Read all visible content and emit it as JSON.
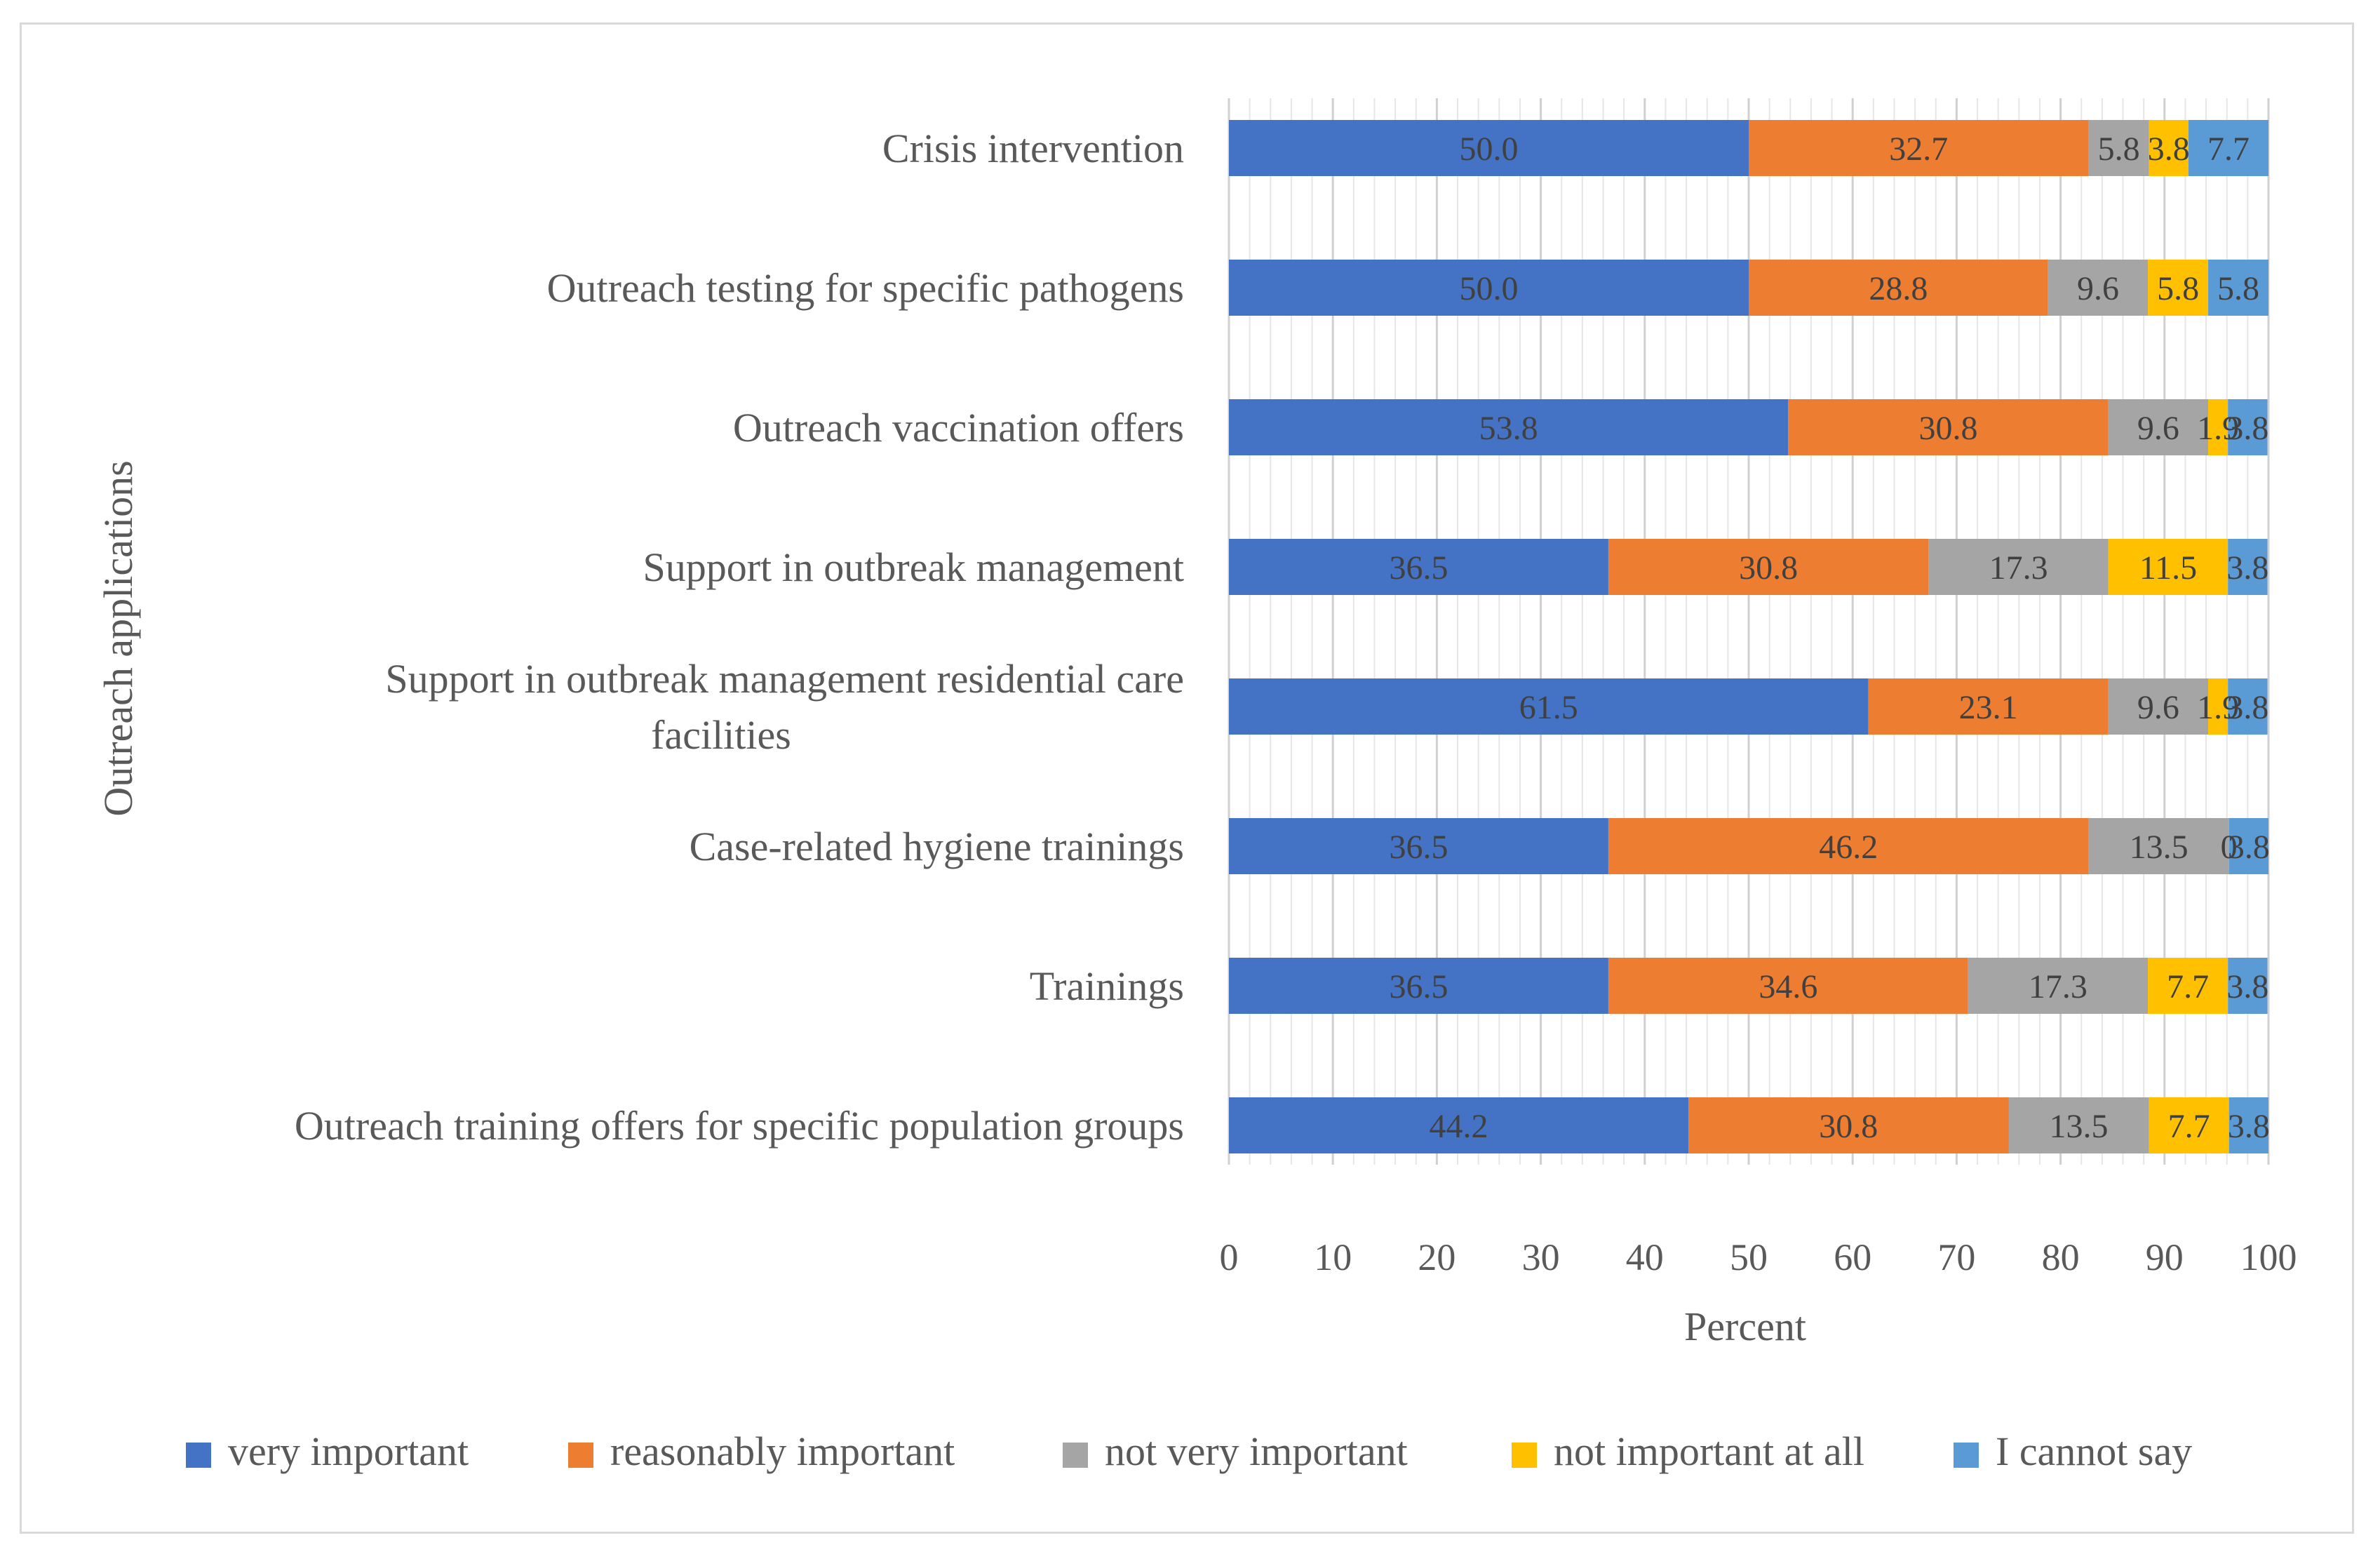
{
  "chart_data": {
    "type": "bar",
    "orientation": "horizontal",
    "stacked": true,
    "categories": [
      "Crisis intervention",
      "Outreach testing for specific pathogens",
      "Outreach vaccination offers",
      "Support in outbreak management",
      "Support in outbreak management residential care facilities",
      "Case-related hygiene trainings",
      "Trainings",
      "Outreach training offers for specific population groups"
    ],
    "category_label_lines": [
      [
        "Crisis intervention"
      ],
      [
        "Outreach testing for specific pathogens"
      ],
      [
        "Outreach vaccination offers"
      ],
      [
        "Support in outbreak management"
      ],
      [
        "Support in outbreak management residential care",
        "facilities"
      ],
      [
        "Case-related hygiene trainings"
      ],
      [
        "Trainings"
      ],
      [
        "Outreach training offers for specific population groups"
      ]
    ],
    "series": [
      {
        "name": "very important",
        "color": "#4472c4",
        "values": [
          50.0,
          50.0,
          53.8,
          36.5,
          61.5,
          36.5,
          36.5,
          44.2
        ],
        "labels": [
          "50.0",
          "50.0",
          "53.8",
          "36.5",
          "61.5",
          "36.5",
          "36.5",
          "44.2"
        ]
      },
      {
        "name": "reasonably important",
        "color": "#ed7d31",
        "values": [
          32.7,
          28.8,
          30.8,
          30.8,
          23.1,
          46.2,
          34.6,
          30.8
        ],
        "labels": [
          "32.7",
          "28.8",
          "30.8",
          "30.8",
          "23.1",
          "46.2",
          "34.6",
          "30.8"
        ]
      },
      {
        "name": "not very important",
        "color": "#a5a5a5",
        "values": [
          5.8,
          9.6,
          9.6,
          17.3,
          9.6,
          13.5,
          17.3,
          13.5
        ],
        "labels": [
          "5.8",
          "9.6",
          "9.6",
          "17.3",
          "9.6",
          "13.5",
          "17.3",
          "13.5"
        ]
      },
      {
        "name": "not important at all",
        "color": "#ffc000",
        "values": [
          3.8,
          5.8,
          1.9,
          11.5,
          1.9,
          0,
          7.7,
          7.7
        ],
        "labels": [
          "3.8",
          "5.8",
          "1.9",
          "11.5",
          "1.9",
          "0",
          "7.7",
          "7.7"
        ]
      },
      {
        "name": "I cannot say",
        "color": "#5b9bd5",
        "values": [
          7.7,
          5.8,
          3.8,
          3.8,
          3.8,
          3.8,
          3.8,
          3.8
        ],
        "labels": [
          "7.7",
          "5.8",
          "3.8",
          "3.8",
          "3.8",
          "3.8",
          "3.8",
          "3.8"
        ]
      }
    ],
    "xlabel": "Percent",
    "ylabel": "Outreach applications",
    "xlim": [
      0,
      100
    ],
    "xticks": [
      "0",
      "10",
      "20",
      "30",
      "40",
      "50",
      "60",
      "70",
      "80",
      "90",
      "100"
    ],
    "grid": "vertical major and minor",
    "legend_position": "bottom"
  }
}
